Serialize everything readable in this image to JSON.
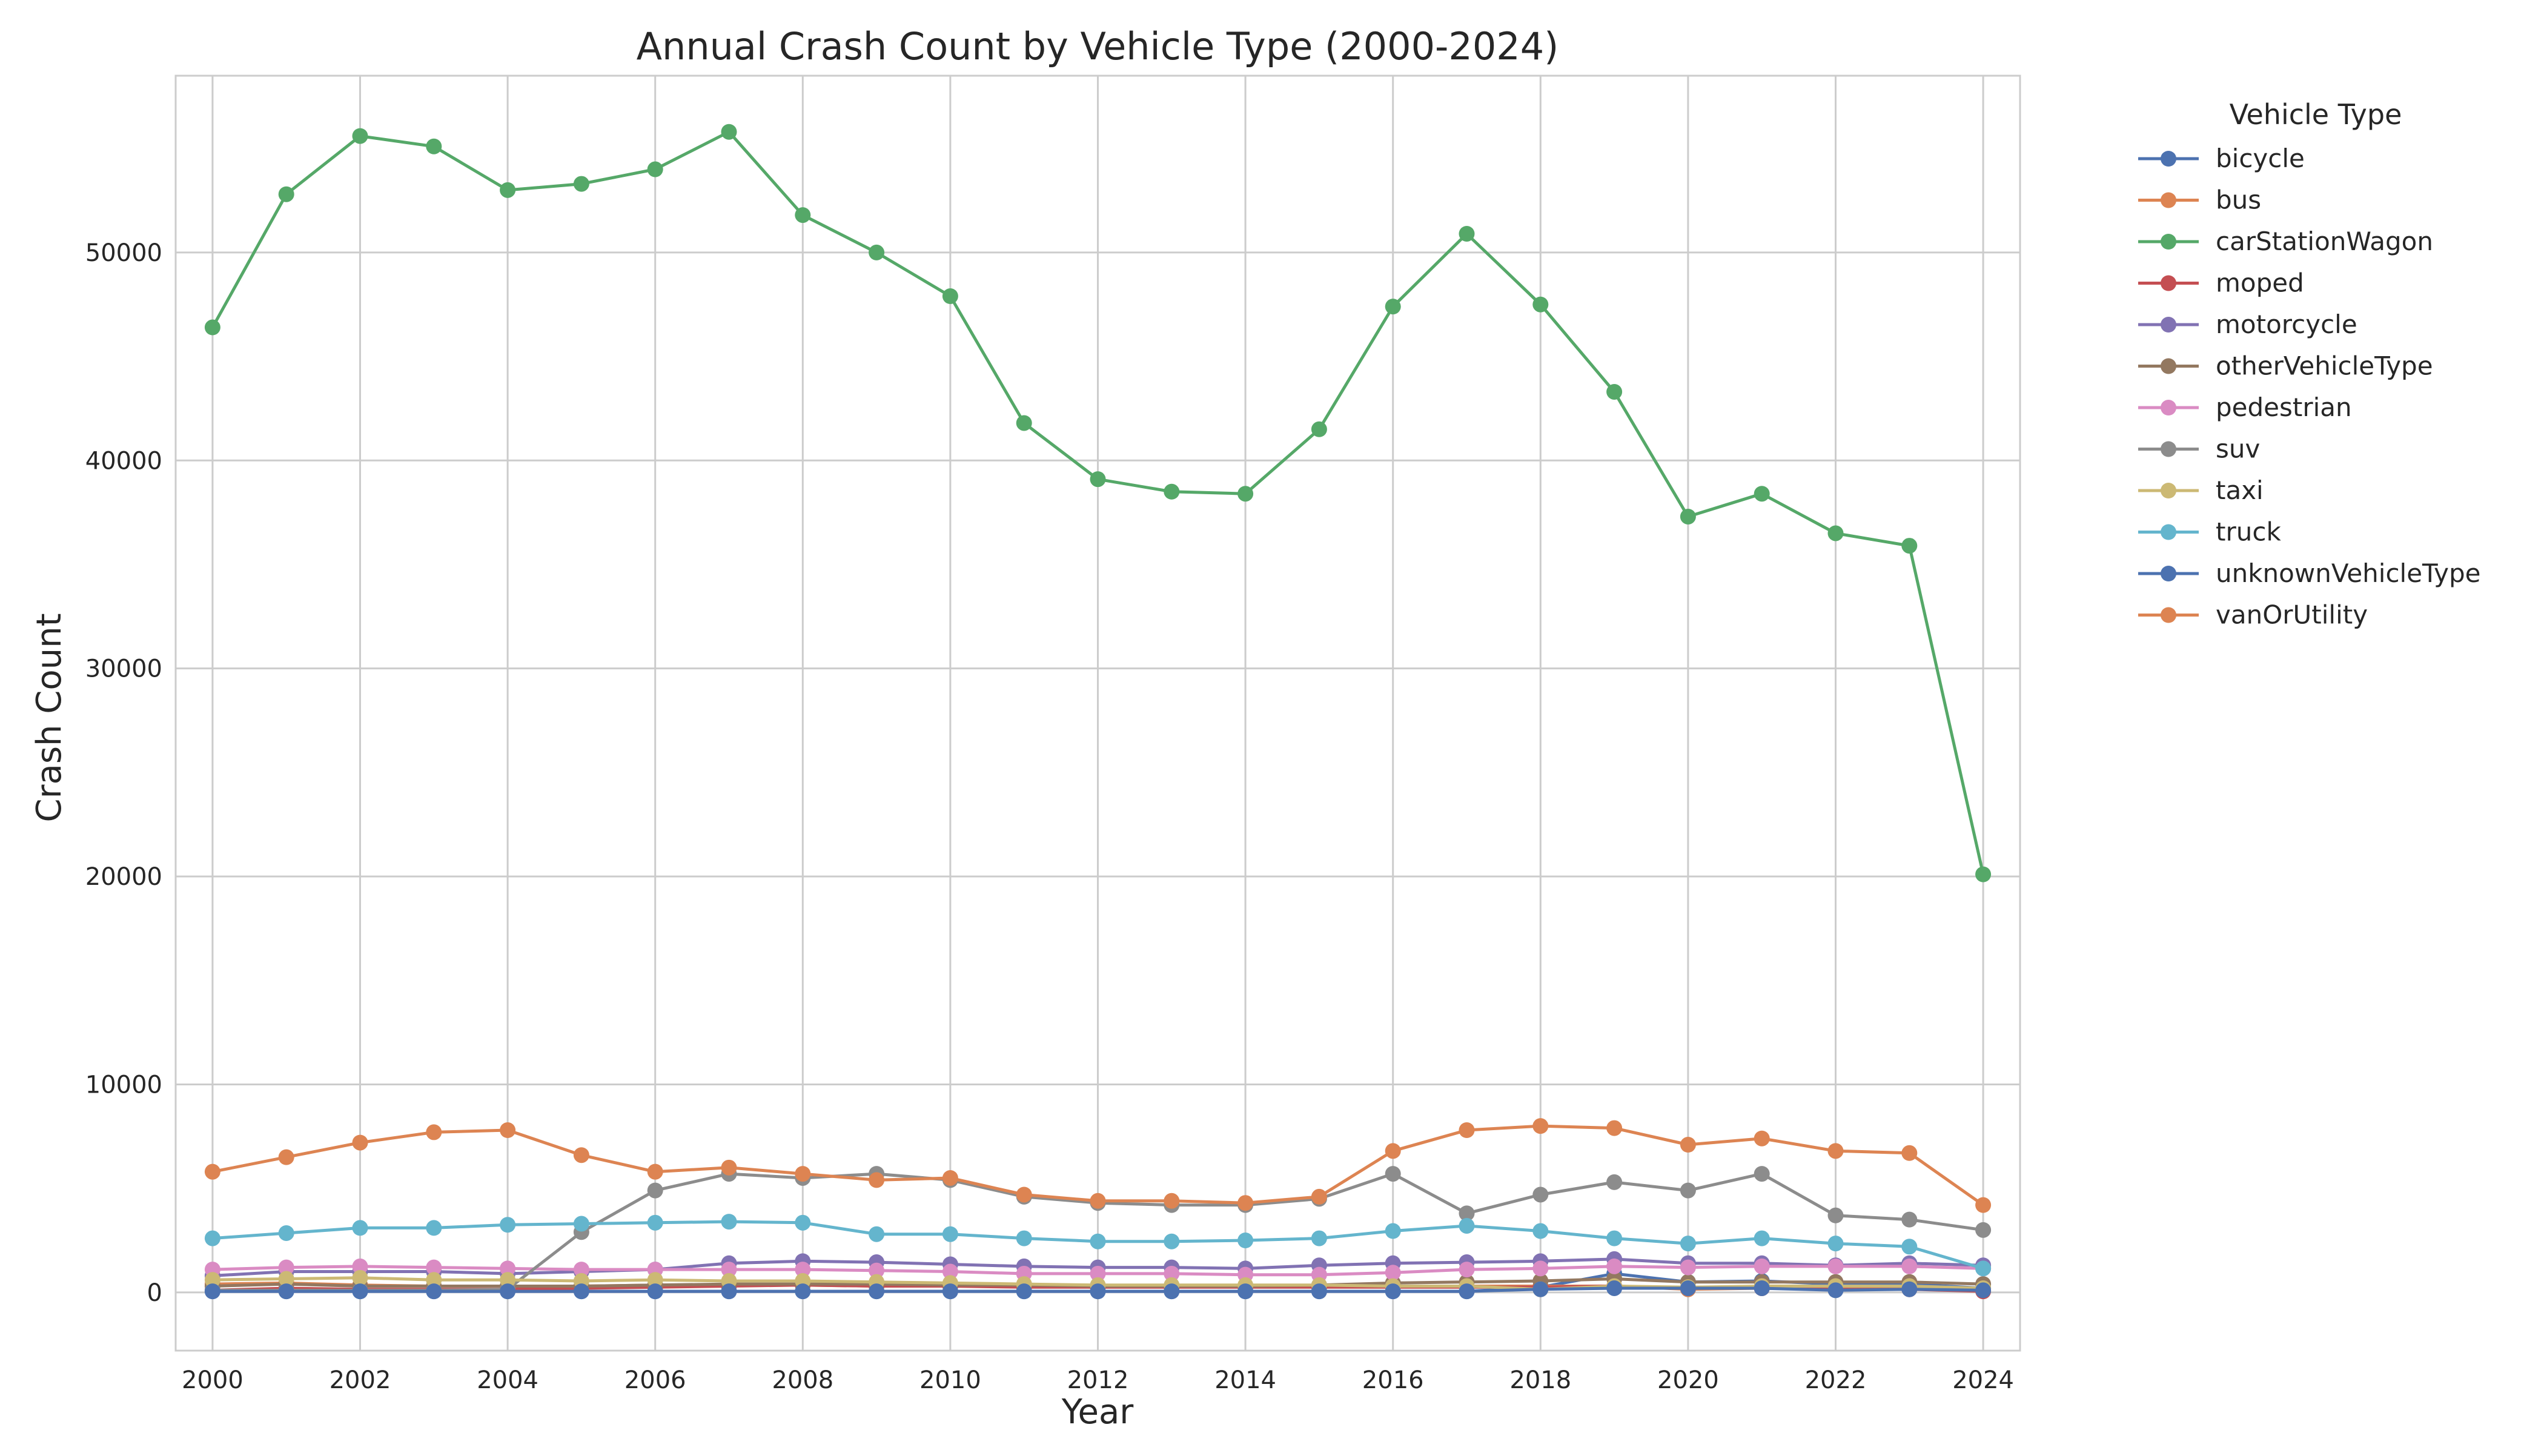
{
  "chart_data": {
    "type": "line",
    "title": "Annual Crash Count by Vehicle Type (2000-2024)",
    "xlabel": "Year",
    "ylabel": "Crash Count",
    "xlim": [
      1999.5,
      2024.5
    ],
    "ylim": [
      -2800,
      58500
    ],
    "x": [
      2000,
      2001,
      2002,
      2003,
      2004,
      2005,
      2006,
      2007,
      2008,
      2009,
      2010,
      2011,
      2012,
      2013,
      2014,
      2015,
      2016,
      2017,
      2018,
      2019,
      2020,
      2021,
      2022,
      2023,
      2024
    ],
    "xticks": [
      2000,
      2002,
      2004,
      2006,
      2008,
      2010,
      2012,
      2014,
      2016,
      2018,
      2020,
      2022,
      2024
    ],
    "yticks": [
      0,
      10000,
      20000,
      30000,
      40000,
      50000
    ],
    "xtick_labels": [
      "2000",
      "2002",
      "2004",
      "2006",
      "2008",
      "2010",
      "2012",
      "2014",
      "2016",
      "2018",
      "2020",
      "2022",
      "2024"
    ],
    "ytick_labels": [
      "0",
      "10000",
      "20000",
      "30000",
      "40000",
      "50000"
    ],
    "grid": true,
    "legend": {
      "title": "Vehicle Type",
      "placement": "outside-right"
    },
    "series": [
      {
        "name": "bicycle",
        "color": "#4C72B0",
        "values": [
          50,
          50,
          50,
          50,
          50,
          50,
          50,
          50,
          50,
          50,
          50,
          50,
          50,
          50,
          50,
          50,
          50,
          50,
          250,
          900,
          500,
          550,
          400,
          400,
          200
        ]
      },
      {
        "name": "bus",
        "color": "#DD8452",
        "values": [
          400,
          450,
          350,
          300,
          300,
          300,
          350,
          350,
          350,
          300,
          300,
          300,
          250,
          300,
          300,
          300,
          300,
          300,
          300,
          300,
          150,
          200,
          150,
          200,
          100
        ]
      },
      {
        "name": "carStationWagon",
        "color": "#55A868",
        "values": [
          46400,
          52800,
          55600,
          55100,
          53000,
          53300,
          54000,
          55800,
          51800,
          50000,
          47900,
          41800,
          39100,
          38500,
          38400,
          41500,
          47400,
          50900,
          47500,
          43300,
          37300,
          38400,
          36500,
          35900,
          20100
        ]
      },
      {
        "name": "moped",
        "color": "#C44E52",
        "values": [
          100,
          200,
          150,
          150,
          150,
          200,
          250,
          300,
          350,
          300,
          300,
          250,
          250,
          250,
          250,
          250,
          250,
          250,
          250,
          300,
          200,
          200,
          150,
          150,
          50
        ]
      },
      {
        "name": "motorcycle",
        "color": "#8172B3",
        "values": [
          800,
          1000,
          1000,
          1000,
          900,
          1000,
          1100,
          1400,
          1500,
          1450,
          1350,
          1250,
          1200,
          1200,
          1150,
          1300,
          1400,
          1450,
          1500,
          1600,
          1400,
          1400,
          1300,
          1400,
          1300
        ]
      },
      {
        "name": "otherVehicleType",
        "color": "#937860",
        "values": [
          300,
          400,
          300,
          300,
          300,
          300,
          350,
          400,
          400,
          400,
          350,
          350,
          300,
          300,
          300,
          350,
          450,
          500,
          550,
          650,
          500,
          500,
          500,
          500,
          400
        ]
      },
      {
        "name": "pedestrian",
        "color": "#DA8BC3",
        "values": [
          1100,
          1200,
          1250,
          1200,
          1150,
          1100,
          1100,
          1100,
          1100,
          1050,
          1000,
          900,
          900,
          900,
          850,
          850,
          950,
          1100,
          1150,
          1250,
          1200,
          1250,
          1250,
          1250,
          1150
        ]
      },
      {
        "name": "suv",
        "color": "#8C8C8C",
        "values": [
          100,
          100,
          100,
          100,
          150,
          2900,
          4900,
          5700,
          5500,
          5700,
          5400,
          4600,
          4300,
          4200,
          4200,
          4500,
          5700,
          3800,
          4700,
          5300,
          4900,
          5700,
          3700,
          3500,
          3000
        ]
      },
      {
        "name": "taxi",
        "color": "#CCB974",
        "values": [
          600,
          650,
          700,
          600,
          600,
          550,
          600,
          550,
          550,
          500,
          450,
          400,
          350,
          350,
          350,
          350,
          300,
          300,
          150,
          300,
          250,
          300,
          300,
          300,
          200
        ]
      },
      {
        "name": "truck",
        "color": "#64B5CD",
        "values": [
          2600,
          2850,
          3100,
          3100,
          3250,
          3300,
          3350,
          3400,
          3350,
          2800,
          2800,
          2600,
          2450,
          2450,
          2500,
          2600,
          2950,
          3200,
          2950,
          2600,
          2350,
          2600,
          2350,
          2200,
          1150
        ]
      },
      {
        "name": "unknownVehicleType",
        "color": "#4C72B0",
        "values": [
          50,
          50,
          50,
          50,
          50,
          50,
          50,
          50,
          50,
          50,
          50,
          50,
          50,
          50,
          50,
          50,
          50,
          50,
          150,
          200,
          200,
          200,
          100,
          150,
          100
        ]
      },
      {
        "name": "vanOrUtility",
        "color": "#DD8452",
        "values": [
          5800,
          6500,
          7200,
          7700,
          7800,
          6600,
          5800,
          6000,
          5700,
          5400,
          5500,
          4700,
          4400,
          4400,
          4300,
          4600,
          6800,
          7800,
          8000,
          7900,
          7100,
          7400,
          6800,
          6700,
          4200
        ]
      }
    ]
  }
}
